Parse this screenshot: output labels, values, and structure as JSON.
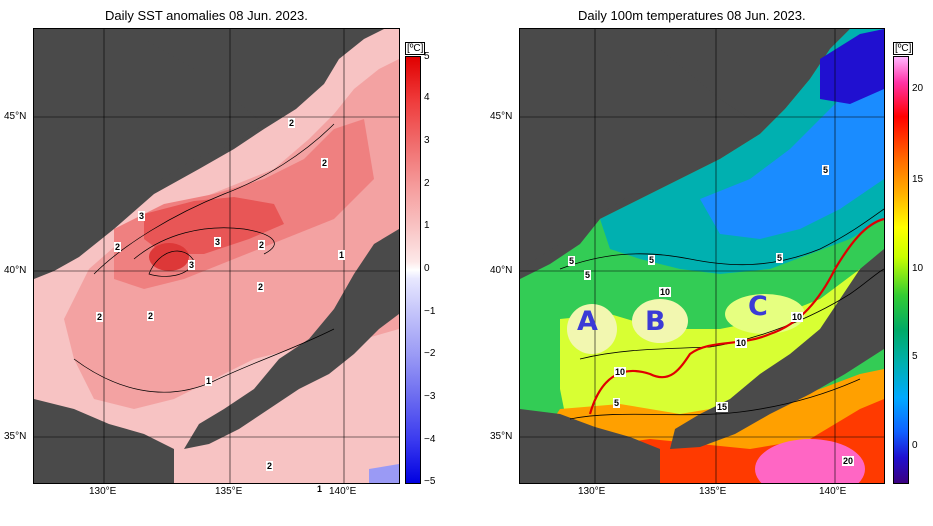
{
  "left_panel": {
    "title": "Daily SST anomalies 08 Jun. 2023.",
    "unit": "[ºC]",
    "colorbar_ticks": [
      "5",
      "4",
      "3",
      "2",
      "1",
      "0",
      "−1",
      "−2",
      "−3",
      "−4",
      "−5"
    ],
    "contour_labels": [
      "2",
      "2",
      "3",
      "2",
      "3",
      "2",
      "3",
      "1",
      "2",
      "2",
      "2",
      "1",
      "2",
      "1"
    ]
  },
  "right_panel": {
    "title": "Daily 100m temperatures 08 Jun. 2023.",
    "unit": "[ºC]",
    "colorbar_ticks": [
      "20",
      "15",
      "10",
      "5",
      "0"
    ],
    "contour_labels": [
      "5",
      "5",
      "5",
      "5",
      "5",
      "10",
      "10",
      "10",
      "10",
      "15",
      "20",
      "5"
    ],
    "region_labels": [
      "A",
      "B",
      "C"
    ]
  },
  "axes": {
    "lat_labels": [
      "45°N",
      "40°N",
      "35°N"
    ],
    "lon_labels": [
      "130°E",
      "135°E",
      "140°E"
    ]
  },
  "colors": {
    "land": "#4a4a4a",
    "anomaly_warm": "#ef6b6b",
    "anomaly_cold": "#6b6bf0",
    "region_label": "#3b3bd6",
    "front_line": "#e00000"
  }
}
